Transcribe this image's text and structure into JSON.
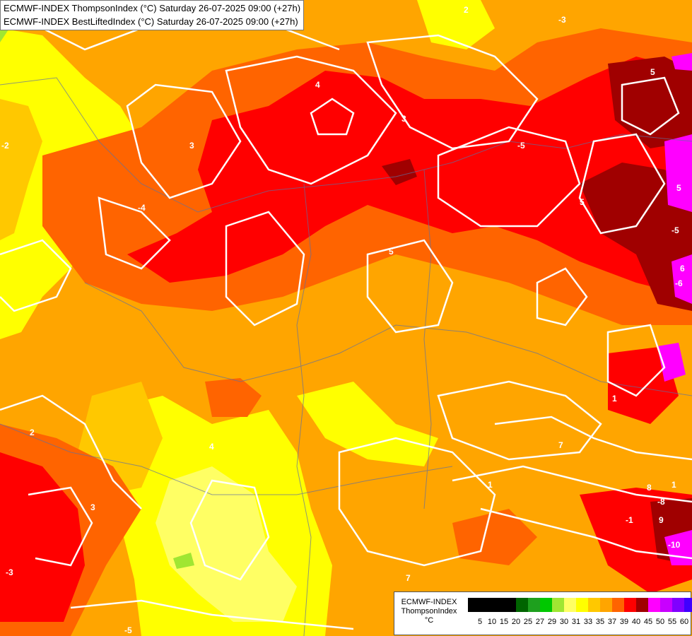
{
  "header": {
    "line1": "ECMWF-INDEX ThompsonIndex (°C) Saturday 26-07-2025 09:00 (+27h)",
    "line2": "ECMWF-INDEX BestLiftedIndex (°C) Saturday 26-07-2025 09:00 (+27h)"
  },
  "legend": {
    "model": "ECMWF-INDEX",
    "variable": "ThompsonIndex",
    "unit": "°C",
    "colors": [
      "#000000",
      "#000000",
      "#000000",
      "#000000",
      "#006400",
      "#1ea01e",
      "#00c800",
      "#a0e632",
      "#ffff64",
      "#ffff00",
      "#ffc800",
      "#ffa500",
      "#ff6400",
      "#ff0000",
      "#a00000",
      "#ff00ff",
      "#c800ff",
      "#8000ff",
      "#4000ff",
      "#0000ff"
    ],
    "ticks": [
      "5",
      "10",
      "15",
      "20",
      "25",
      "27",
      "29",
      "30",
      "31",
      "33",
      "35",
      "37",
      "39",
      "40",
      "45",
      "50",
      "55",
      "60"
    ]
  },
  "map": {
    "region": "Central Europe",
    "fill_colors": {
      "light_yellow": "#ffff64",
      "yellow": "#ffff00",
      "gold": "#ffc800",
      "orange": "#ffa500",
      "dark_orange": "#ff6400",
      "red": "#ff0000",
      "dark_red": "#a00000",
      "magenta": "#ff00ff",
      "green": "#a0e632"
    },
    "contour_labels": [
      "2",
      "3",
      "-3",
      "3",
      "4",
      "5",
      "-5",
      "5",
      "-5",
      "5",
      "6",
      "-6",
      "7",
      "8",
      "-8",
      "9",
      "-10",
      "3",
      "2",
      "-3",
      "-5",
      "5",
      "4",
      "-4",
      "-2",
      "1",
      "1",
      "-1",
      "1",
      "7"
    ]
  }
}
